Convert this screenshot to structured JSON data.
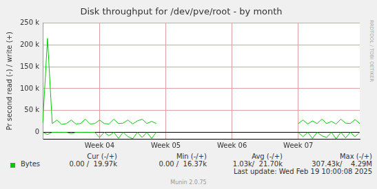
{
  "chart_data": {
    "type": "line",
    "title": "Disk throughput for /dev/pve/root - by month",
    "y_label": "Pr second read (-) / write (+)",
    "categories": [
      null,
      null,
      null,
      null,
      null,
      null,
      null,
      null,
      null,
      null,
      null,
      null,
      "Week 04",
      null,
      null,
      null,
      null,
      null,
      null,
      null,
      null,
      null,
      null,
      null,
      null,
      null,
      "Week 05",
      null,
      null,
      null,
      null,
      null,
      null,
      null,
      null,
      null,
      null,
      null,
      null,
      null,
      "Week 06",
      null,
      null,
      null,
      null,
      null,
      null,
      null,
      null,
      null,
      null,
      null,
      null,
      null,
      "Week 07",
      null,
      null,
      null,
      null,
      null,
      null,
      null,
      null,
      null,
      null,
      null,
      null,
      null
    ],
    "series": [
      {
        "name": "Bytes",
        "color": "#00cc00",
        "values": [
          22000,
          215000,
          20000,
          28000,
          18000,
          20000,
          28000,
          19000,
          20000,
          30000,
          19000,
          20000,
          28000,
          20000,
          19000,
          30000,
          20000,
          21000,
          28000,
          19000,
          26000,
          30000,
          20000,
          25000,
          20000,
          null,
          null,
          null,
          null,
          null,
          null,
          null,
          null,
          null,
          null,
          null,
          null,
          null,
          null,
          null,
          null,
          null,
          null,
          null,
          null,
          null,
          null,
          null,
          null,
          null,
          null,
          null,
          null,
          null,
          20000,
          28000,
          19000,
          26000,
          20000,
          30000,
          20000,
          25000,
          19000,
          30000,
          21000,
          20000,
          29000,
          20000
        ]
      },
      {
        "name": "Bytes",
        "color": "#00cc00",
        "values": [
          0,
          -5000,
          0,
          0,
          0,
          0,
          -3000,
          0,
          0,
          0,
          0,
          0,
          -12000,
          0,
          -8000,
          0,
          -14000,
          0,
          -10000,
          -15000,
          0,
          -12000,
          0,
          -14000,
          0,
          null,
          null,
          null,
          null,
          null,
          null,
          null,
          null,
          null,
          null,
          null,
          null,
          null,
          null,
          null,
          null,
          null,
          null,
          null,
          null,
          null,
          null,
          null,
          null,
          null,
          null,
          null,
          null,
          null,
          0,
          -10000,
          0,
          -14000,
          0,
          -8000,
          -12000,
          0,
          -15000,
          0,
          -13000,
          0,
          -10000,
          0
        ]
      }
    ],
    "ylim": [
      -15000,
      250000
    ],
    "yticks": [
      0,
      {
        "value": 50000,
        "label": "50 k"
      },
      {
        "value": 100000,
        "label": "100 k"
      },
      {
        "value": 150000,
        "label": "150 k"
      },
      {
        "value": 200000,
        "label": "200 k"
      },
      {
        "value": 250000,
        "label": "250 k"
      }
    ],
    "grid": true
  },
  "stats": {
    "columns": [
      "Cur (-/+)",
      "Min (-/+)",
      "Avg (-/+)",
      "Max (-/+)"
    ],
    "values": [
      "0.00 /  19.97k",
      "0.00 /  16.37k",
      "1.03k/  21.70k",
      "307.43k/    4.29M"
    ]
  },
  "watermark": "RRDTOOL / TOBI OETIKER",
  "last_update": "Last update: Wed Feb 19 10:00:08 2025",
  "footer": "Munin 2.0.75"
}
